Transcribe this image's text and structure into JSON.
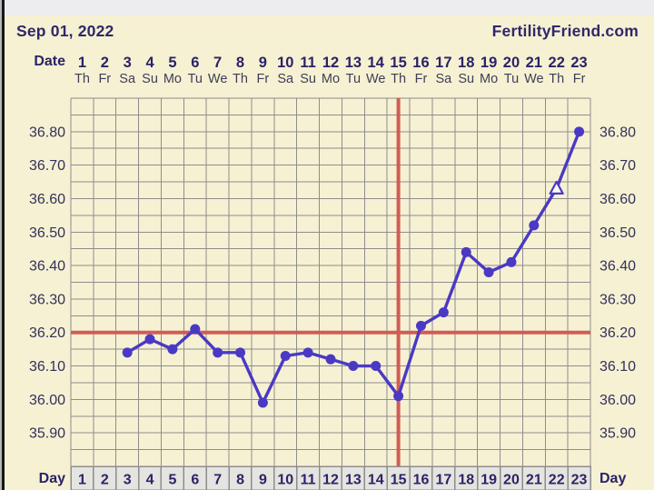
{
  "header": {
    "date_title": "Sep 01, 2022",
    "brand": "FertilityFriend.com"
  },
  "colors": {
    "background": "#f6f1d3",
    "grid_line": "#8d8d8d",
    "series_line": "#4a39c5",
    "red_line": "#d25c55",
    "navy_text": "#2b2366",
    "weekday_text": "#3e3e55",
    "y_label_text": "#32305a",
    "day_cell_bg": "#e4e4e0",
    "top_strip": "#ededef",
    "triangle_fill": "#fbfaf0"
  },
  "date_axis": {
    "label": "Date",
    "day_numbers": [
      1,
      2,
      3,
      4,
      5,
      6,
      7,
      8,
      9,
      10,
      11,
      12,
      13,
      14,
      15,
      16,
      17,
      18,
      19,
      20,
      21,
      22,
      23
    ],
    "weekdays": [
      "Th",
      "Fr",
      "Sa",
      "Su",
      "Mo",
      "Tu",
      "We",
      "Th",
      "Fr",
      "Sa",
      "Su",
      "Mo",
      "Tu",
      "We",
      "Th",
      "Fr",
      "Sa",
      "Su",
      "Mo",
      "Tu",
      "We",
      "Th",
      "Fr"
    ]
  },
  "day_footer": {
    "label_left": "Day",
    "label_right": "Day",
    "day_numbers": [
      1,
      2,
      3,
      4,
      5,
      6,
      7,
      8,
      9,
      10,
      11,
      12,
      13,
      14,
      15,
      16,
      17,
      18,
      19,
      20,
      21,
      22,
      23
    ]
  },
  "chart_data": {
    "type": "line",
    "x_axis": {
      "label": "Day",
      "range": [
        1,
        23
      ]
    },
    "y_axis": {
      "range": [
        35.8,
        36.9
      ],
      "major_tick": 0.1,
      "minor_tick": 0.05,
      "tick_labels": [
        "36.80",
        "36.70",
        "36.60",
        "36.50",
        "36.40",
        "36.30",
        "36.20",
        "36.10",
        "36.00",
        "35.90"
      ],
      "labels_on_both_sides": true
    },
    "grid": true,
    "series": [
      {
        "name": "temperature",
        "points": [
          {
            "day": 3,
            "temp": 36.14
          },
          {
            "day": 4,
            "temp": 36.18
          },
          {
            "day": 5,
            "temp": 36.15
          },
          {
            "day": 6,
            "temp": 36.21
          },
          {
            "day": 7,
            "temp": 36.14
          },
          {
            "day": 8,
            "temp": 36.14
          },
          {
            "day": 9,
            "temp": 35.99
          },
          {
            "day": 10,
            "temp": 36.13
          },
          {
            "day": 11,
            "temp": 36.14
          },
          {
            "day": 12,
            "temp": 36.12
          },
          {
            "day": 13,
            "temp": 36.1
          },
          {
            "day": 14,
            "temp": 36.1
          },
          {
            "day": 15,
            "temp": 36.01
          },
          {
            "day": 16,
            "temp": 36.22
          },
          {
            "day": 17,
            "temp": 36.26
          },
          {
            "day": 18,
            "temp": 36.44
          },
          {
            "day": 19,
            "temp": 36.38
          },
          {
            "day": 20,
            "temp": 36.41
          },
          {
            "day": 21,
            "temp": 36.52
          },
          {
            "day": 22,
            "temp": 36.63,
            "marker": "open_triangle"
          },
          {
            "day": 23,
            "temp": 36.8
          }
        ]
      }
    ],
    "annotations": {
      "coverline_temp": 36.2,
      "vertical_line_day": 15
    }
  }
}
